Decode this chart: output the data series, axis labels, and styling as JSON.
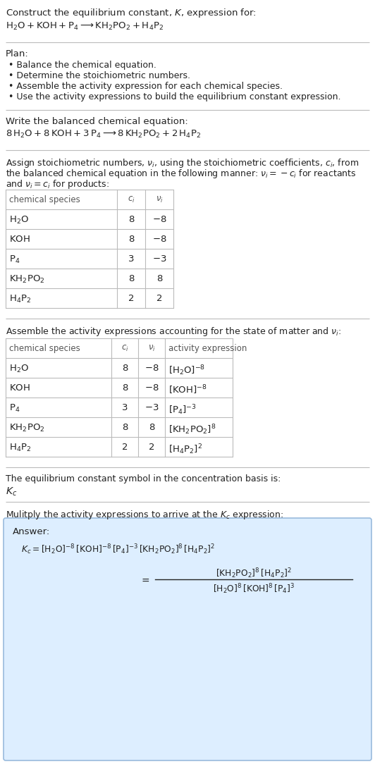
{
  "bg_color": "#ffffff",
  "text_color": "#222222",
  "gray_text": "#555555",
  "answer_bg": "#ddeeff",
  "answer_border": "#99bbdd",
  "title_line1": "Construct the equilibrium constant, $K$, expression for:",
  "title_line2_parts": [
    {
      "text": "$\\mathrm{H_2O + KOH + P_4}$",
      "type": "normal"
    },
    {
      "text": " $\\longrightarrow$ ",
      "type": "normal"
    },
    {
      "text": "$\\mathrm{KH_2PO_2 + H_4P_2}$",
      "type": "normal"
    }
  ],
  "title_line2": "$\\mathrm{H_2O + KOH + P_4 \\longrightarrow KH_2PO_2 + H_4P_2}$",
  "plan_header": "Plan:",
  "plan_bullets": [
    "Balance the chemical equation.",
    "Determine the stoichiometric numbers.",
    "Assemble the activity expression for each chemical species.",
    "Use the activity expressions to build the equilibrium constant expression."
  ],
  "balanced_header": "Write the balanced chemical equation:",
  "balanced_eq": "$\\mathrm{8\\,H_2O + 8\\,KOH + 3\\,P_4 \\longrightarrow 8\\,KH_2PO_2 + 2\\,H_4P_2}$",
  "stoich_header1": "Assign stoichiometric numbers, $\\nu_i$, using the stoichiometric coefficients, $c_i$, from",
  "stoich_header2": "the balanced chemical equation in the following manner: $\\nu_i = -c_i$ for reactants",
  "stoich_header3": "and $\\nu_i = c_i$ for products:",
  "table1_headers": [
    "chemical species",
    "$c_i$",
    "$\\nu_i$"
  ],
  "table1_rows": [
    [
      "$\\mathrm{H_2O}$",
      "8",
      "$-8$"
    ],
    [
      "$\\mathrm{KOH}$",
      "8",
      "$-8$"
    ],
    [
      "$\\mathrm{P_4}$",
      "3",
      "$-3$"
    ],
    [
      "$\\mathrm{KH_2PO_2}$",
      "8",
      "8"
    ],
    [
      "$\\mathrm{H_4P_2}$",
      "2",
      "2"
    ]
  ],
  "activity_header": "Assemble the activity expressions accounting for the state of matter and $\\nu_i$:",
  "table2_headers": [
    "chemical species",
    "$c_i$",
    "$\\nu_i$",
    "activity expression"
  ],
  "table2_rows": [
    [
      "$\\mathrm{H_2O}$",
      "8",
      "$-8$",
      "$[\\mathrm{H_2O}]^{-8}$"
    ],
    [
      "$\\mathrm{KOH}$",
      "8",
      "$-8$",
      "$[\\mathrm{KOH}]^{-8}$"
    ],
    [
      "$\\mathrm{P_4}$",
      "3",
      "$-3$",
      "$[\\mathrm{P_4}]^{-3}$"
    ],
    [
      "$\\mathrm{KH_2PO_2}$",
      "8",
      "8",
      "$[\\mathrm{KH_2PO_2}]^{8}$"
    ],
    [
      "$\\mathrm{H_4P_2}$",
      "2",
      "2",
      "$[\\mathrm{H_4P_2}]^{2}$"
    ]
  ],
  "kc_header": "The equilibrium constant symbol in the concentration basis is:",
  "kc_symbol": "$K_c$",
  "multiply_header": "Mulitply the activity expressions to arrive at the $K_c$ expression:",
  "answer_label": "Answer:",
  "answer_eq1": "$K_c = [\\mathrm{H_2O}]^{-8}\\,[\\mathrm{KOH}]^{-8}\\,[\\mathrm{P_4}]^{-3}\\,[\\mathrm{KH_2PO_2}]^{8}\\,[\\mathrm{H_4P_2}]^{2}$",
  "answer_eq2_lhs": "$= $",
  "answer_eq2_num": "$[\\mathrm{KH_2PO_2}]^{8}\\,[\\mathrm{H_4P_2}]^{2}$",
  "answer_eq2_den": "$[\\mathrm{H_2O}]^{8}\\,[\\mathrm{KOH}]^{8}\\,[\\mathrm{P_4}]^{3}$",
  "line_color": "#bbbbbb"
}
